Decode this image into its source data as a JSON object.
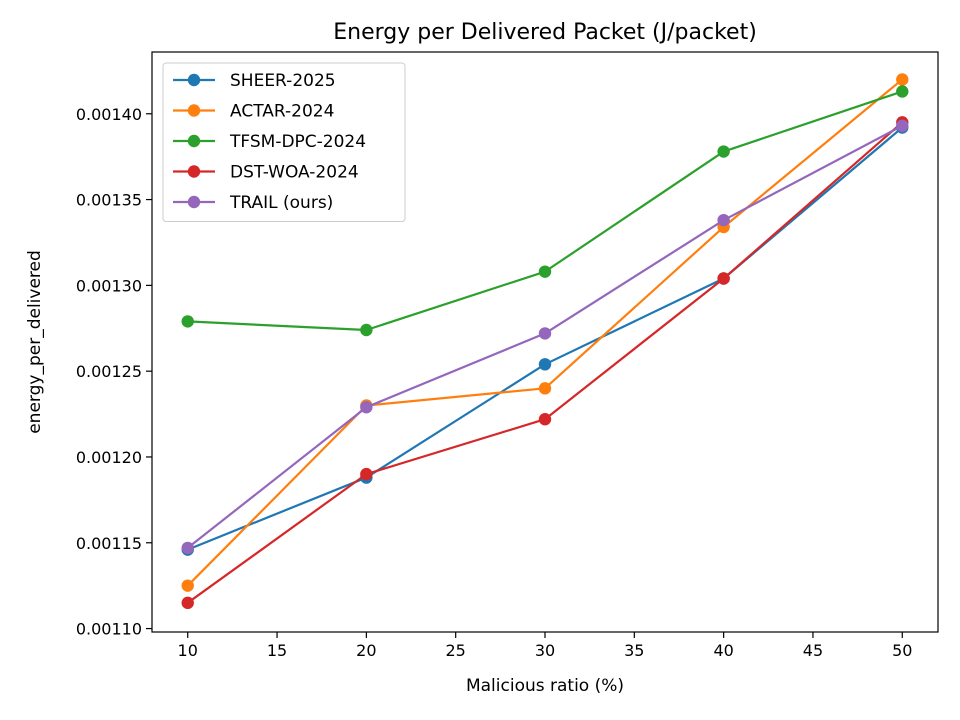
{
  "chart_data": {
    "type": "line",
    "title": "Energy per Delivered Packet (J/packet)",
    "xlabel": "Malicious ratio (%)",
    "ylabel": "energy_per_delivered",
    "xlim": [
      8,
      52
    ],
    "ylim": [
      0.001098,
      0.001436
    ],
    "x_ticks": [
      10,
      15,
      20,
      25,
      30,
      35,
      40,
      45,
      50
    ],
    "y_ticks": [
      0.0011,
      0.00115,
      0.0012,
      0.00125,
      0.0013,
      0.00135,
      0.0014
    ],
    "x_tick_labels": [
      "10",
      "15",
      "20",
      "25",
      "30",
      "35",
      "40",
      "45",
      "50"
    ],
    "y_tick_labels": [
      "0.00110",
      "0.00115",
      "0.00120",
      "0.00125",
      "0.00130",
      "0.00135",
      "0.00140"
    ],
    "grid": false,
    "legend_position": "top-left",
    "x": [
      10,
      20,
      30,
      40,
      50
    ],
    "series": [
      {
        "name": "SHEER-2025",
        "color": "#1f77b4",
        "values": [
          0.001146,
          0.001188,
          0.001254,
          0.001304,
          0.001392
        ]
      },
      {
        "name": "ACTAR-2024",
        "color": "#ff7f0e",
        "values": [
          0.001125,
          0.00123,
          0.00124,
          0.001334,
          0.00142
        ]
      },
      {
        "name": "TFSM-DPC-2024",
        "color": "#2ca02c",
        "values": [
          0.001279,
          0.001274,
          0.001308,
          0.001378,
          0.001413
        ]
      },
      {
        "name": "DST-WOA-2024",
        "color": "#d62728",
        "values": [
          0.001115,
          0.00119,
          0.001222,
          0.001304,
          0.001395
        ]
      },
      {
        "name": "TRAIL (ours)",
        "color": "#9467bd",
        "values": [
          0.001147,
          0.001229,
          0.001272,
          0.001338,
          0.001393
        ]
      }
    ]
  }
}
